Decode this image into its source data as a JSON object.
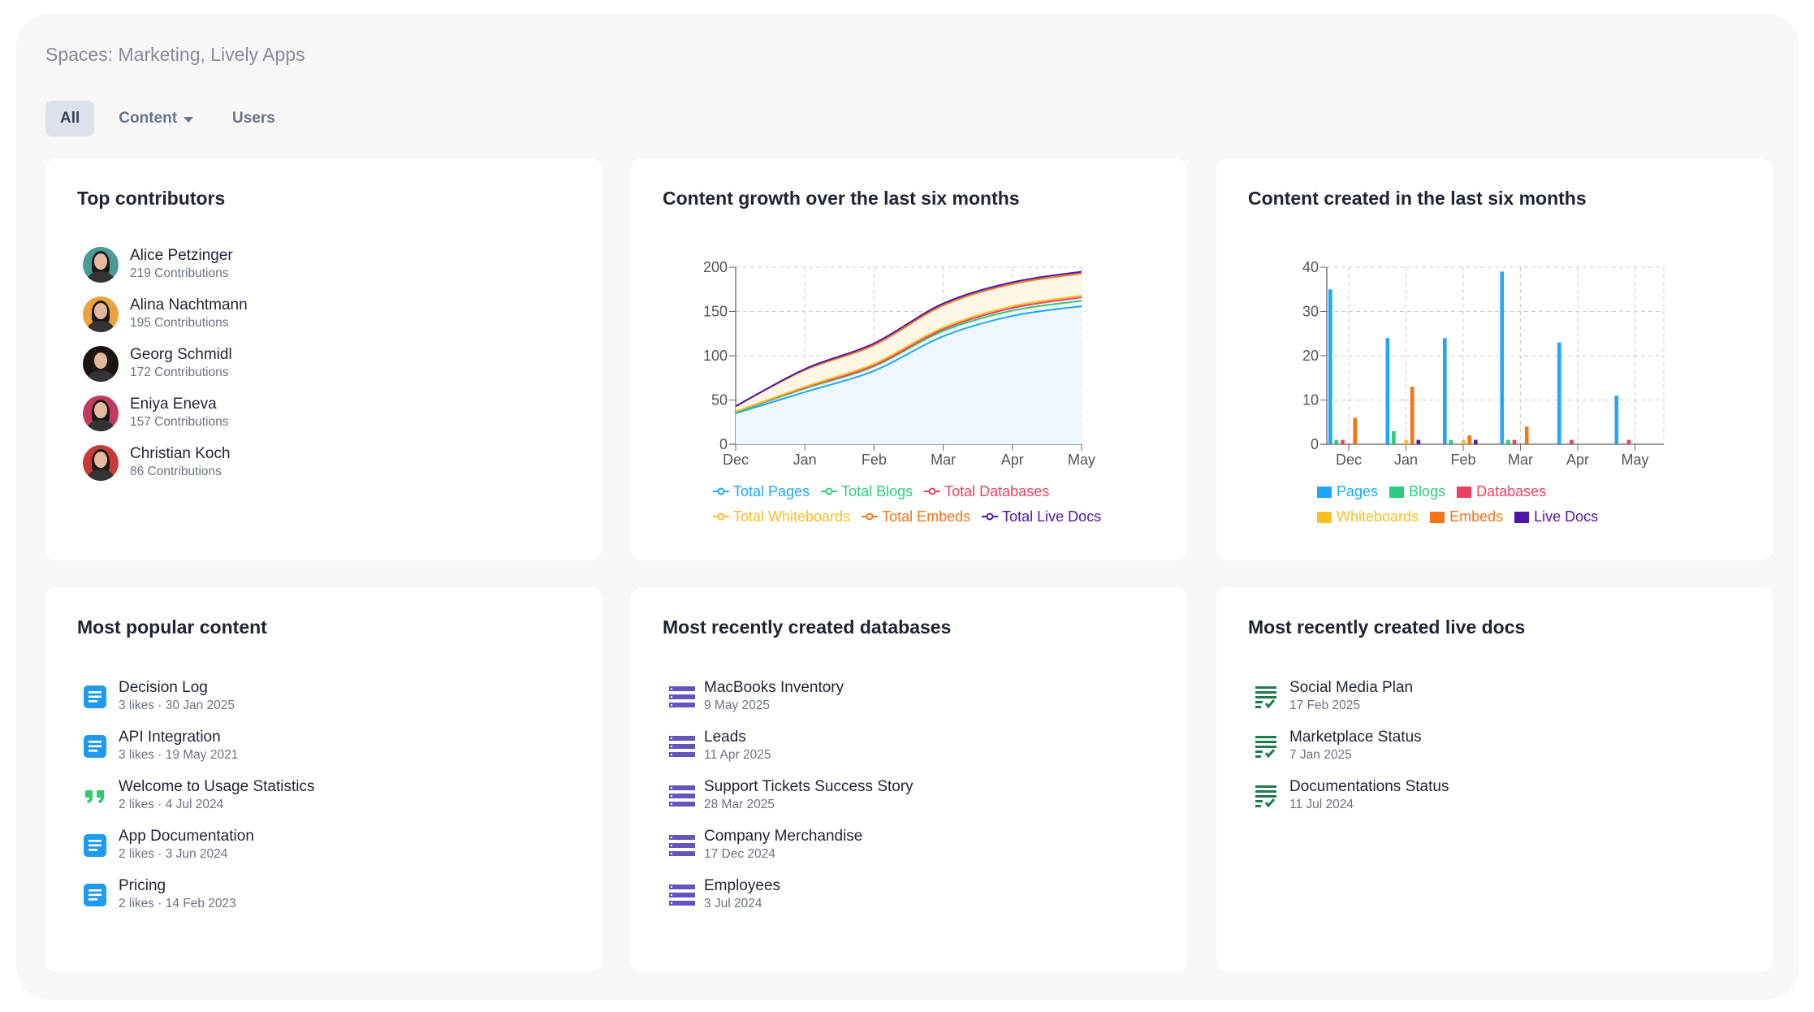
{
  "header": {
    "title": "Spaces: Marketing, Lively Apps"
  },
  "tabs": [
    {
      "label": "All",
      "active": true
    },
    {
      "label": "Content",
      "has_dropdown": true
    },
    {
      "label": "Users"
    }
  ],
  "colors": {
    "pages": "#1ea7fd",
    "blogs": "#2ecc80",
    "databases": "#ec4062",
    "whiteboards": "#fbbf24",
    "embeds": "#f97316",
    "live_docs": "#4c17a6"
  },
  "top_contributors": {
    "title": "Top contributors",
    "items": [
      {
        "name": "Alice Petzinger",
        "sub": "219 Contributions",
        "avatar_bg": "#4a9a95"
      },
      {
        "name": "Alina Nachtmann",
        "sub": "195 Contributions",
        "avatar_bg": "#eba43c"
      },
      {
        "name": "Georg Schmidl",
        "sub": "172 Contributions",
        "avatar_bg": "#1b1410"
      },
      {
        "name": "Eniya Eneva",
        "sub": "157 Contributions",
        "avatar_bg": "#c23a5e"
      },
      {
        "name": "Christian Koch",
        "sub": "86 Contributions",
        "avatar_bg": "#c73a35"
      }
    ]
  },
  "growth_chart": {
    "title": "Content growth over the last six months"
  },
  "created_chart": {
    "title": "Content created in the last six months"
  },
  "chart_data": [
    {
      "type": "area",
      "stacked": true,
      "x": [
        "Dec",
        "Jan",
        "Feb",
        "Mar",
        "Apr",
        "May"
      ],
      "ylim": [
        0,
        200
      ],
      "yticks": [
        0,
        50,
        100,
        150,
        200
      ],
      "grid": true,
      "legend": "bottom",
      "series": [
        {
          "name": "Total Pages",
          "key": "pages",
          "values": [
            35,
            59,
            83,
            122,
            145,
            156
          ]
        },
        {
          "name": "Total Blogs",
          "key": "blogs",
          "values": [
            1,
            4,
            5,
            6,
            6,
            6
          ]
        },
        {
          "name": "Total Databases",
          "key": "databases",
          "values": [
            1,
            1,
            1,
            2,
            3,
            4
          ]
        },
        {
          "name": "Total Whiteboards",
          "key": "whiteboards",
          "values": [
            0,
            1,
            2,
            2,
            2,
            2
          ]
        },
        {
          "name": "Total Embeds",
          "key": "embeds",
          "values": [
            6,
            19,
            21,
            25,
            25,
            25
          ]
        },
        {
          "name": "Total Live Docs",
          "key": "live_docs",
          "values": [
            0,
            1,
            2,
            2,
            2,
            2
          ]
        }
      ]
    },
    {
      "type": "bar",
      "categories": [
        "Dec",
        "Jan",
        "Feb",
        "Mar",
        "Apr",
        "May"
      ],
      "ylim": [
        0,
        40
      ],
      "yticks": [
        0,
        10,
        20,
        30,
        40
      ],
      "grid": true,
      "legend": "bottom",
      "series": [
        {
          "name": "Pages",
          "key": "pages",
          "values": [
            35,
            24,
            24,
            39,
            23,
            11
          ]
        },
        {
          "name": "Blogs",
          "key": "blogs",
          "values": [
            1,
            3,
            1,
            1,
            0,
            0
          ]
        },
        {
          "name": "Databases",
          "key": "databases",
          "values": [
            1,
            0,
            0,
            1,
            1,
            1
          ]
        },
        {
          "name": "Whiteboards",
          "key": "whiteboards",
          "values": [
            0,
            1,
            1,
            0,
            0,
            0
          ]
        },
        {
          "name": "Embeds",
          "key": "embeds",
          "values": [
            6,
            13,
            2,
            4,
            0,
            0
          ]
        },
        {
          "name": "Live Docs",
          "key": "live_docs",
          "values": [
            0,
            1,
            1,
            0,
            0,
            0
          ]
        }
      ]
    }
  ],
  "popular_content": {
    "title": "Most popular content",
    "items": [
      {
        "name": "Decision Log",
        "sub": "3 likes · 30 Jan 2025",
        "icon": "page-icon"
      },
      {
        "name": "API Integration",
        "sub": "3 likes · 19 May 2021",
        "icon": "page-icon"
      },
      {
        "name": "Welcome to Usage Statistics",
        "sub": "2 likes · 4 Jul 2024",
        "icon": "blog-quote-icon"
      },
      {
        "name": "App Documentation",
        "sub": "2 likes · 3 Jun 2024",
        "icon": "page-icon"
      },
      {
        "name": "Pricing",
        "sub": "2 likes · 14 Feb 2023",
        "icon": "page-icon"
      }
    ]
  },
  "recent_databases": {
    "title": "Most recently created databases",
    "items": [
      {
        "name": "MacBooks Inventory",
        "sub": "9 May 2025"
      },
      {
        "name": "Leads",
        "sub": "11 Apr 2025"
      },
      {
        "name": "Support Tickets Success Story",
        "sub": "28 Mar 2025"
      },
      {
        "name": "Company Merchandise",
        "sub": "17 Dec 2024"
      },
      {
        "name": "Employees",
        "sub": "3 Jul 2024"
      }
    ]
  },
  "recent_live_docs": {
    "title": "Most recently created live docs",
    "items": [
      {
        "name": "Social Media Plan",
        "sub": "17 Feb 2025"
      },
      {
        "name": "Marketplace Status",
        "sub": "7 Jan 2025"
      },
      {
        "name": "Documentations Status",
        "sub": "11 Jul 2024"
      }
    ]
  }
}
